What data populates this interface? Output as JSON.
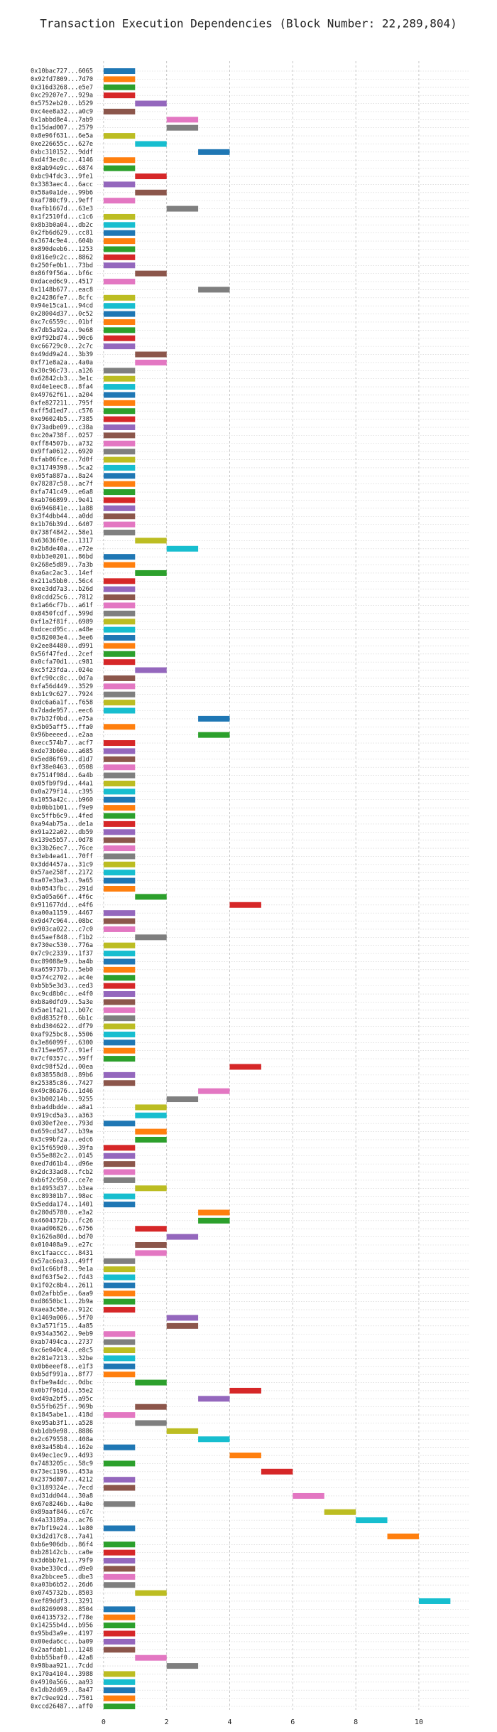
{
  "chart_data": {
    "type": "gantt",
    "title": "Transaction Execution Dependencies (Block Number: 22,289,804)",
    "categories": [
      "0x10bac727...6065",
      "0x92fd7809...7d70",
      "0x316d3268...e5e7",
      "0xc29207e7...929a",
      "0x5752eb20...b529",
      "0xc4ee8a32...a0c9",
      "0x1abbd8e4...7ab9",
      "0x15dad007...2579",
      "0x8e96f631...6e5a",
      "0xe226655c...627e",
      "0xbc310152...9ddf",
      "0xd4f3ec0c...4146",
      "0x8ab94e9c...6874",
      "0xbc94fdc3...9fe1",
      "0x3383aec4...6acc",
      "0x58a0a1de...99b6",
      "0xaf780cf9...9eff",
      "0xafb1667d...63e3",
      "0x1f2510fd...c1c6",
      "0x8b3b0a04...db2c",
      "0x2fb6d629...cc81",
      "0x3674c9e4...604b",
      "0x890deeb6...1253",
      "0x816e9c2c...8862",
      "0x250fe0b1...73bd",
      "0x86f9f56a...bf6c",
      "0xdaced6c9...4517",
      "0x1148b677...eac8",
      "0x24286fe7...8cfc",
      "0x94e15ca1...94cd",
      "0x28004d37...0c52",
      "0xc7c6559c...01bf",
      "0x7db5a92a...9e68",
      "0x9f92bd74...90c6",
      "0xc66729c0...2c7c",
      "0x49dd9a24...3b39",
      "0xf71e8a2a...4a0a",
      "0x30c96c73...a126",
      "0x62842cb3...3e1c",
      "0xd4e1eec8...8fa4",
      "0x49762f61...a204",
      "0xfe827211...795f",
      "0xff5d1ed7...c576",
      "0xe96024b5...7385",
      "0x73adbe09...c38a",
      "0xc20a738f...0257",
      "0xff84507b...a732",
      "0x9ffa0612...6920",
      "0xfab06fce...7d0f",
      "0x31749398...5ca2",
      "0x05fa887a...8a24",
      "0x78287c58...ac7f",
      "0xfa741c49...e6a8",
      "0xab766899...9e41",
      "0x6946841e...1a88",
      "0x3f4dbb44...a0dd",
      "0x1b76b39d...6407",
      "0x738f4842...58e1",
      "0x63636f0e...1317",
      "0x2b8de40a...e72e",
      "0xbb3e0201...86bd",
      "0x268e5d89...7a3b",
      "0xa6ac2ac3...14ef",
      "0x211e5bb0...56c4",
      "0xee3dd7a3...b26d",
      "0x8cdd25c6...7812",
      "0x1a66cf7b...a61f",
      "0x8450fcdf...599d",
      "0xf1a2f81f...6989",
      "0xdcecd95c...a48e",
      "0x582003e4...3ee6",
      "0x2ee84480...d991",
      "0x56f47fed...2cef",
      "0x0cfa70d1...c981",
      "0xc5f23fda...024e",
      "0xfc90cc8c...0d7a",
      "0xfa56d449...3529",
      "0xb1c9c627...7924",
      "0xdc6a6a1f...f658",
      "0x7dade957...eec6",
      "0x7b32f0bd...e75a",
      "0x5b05aff5...ffa0",
      "0x96beeeed...e2aa",
      "0xecc574b7...acf7",
      "0xde73b60e...a685",
      "0x5ed86f69...d1d7",
      "0xf38e0463...0508",
      "0x7514f98d...6a4b",
      "0x05fb9f9d...44a1",
      "0x0a279f14...c395",
      "0x1055a42c...b960",
      "0xb0bb1b01...f9e9",
      "0xc5ffb6c9...4fed",
      "0xa94ab75a...de1a",
      "0x91a22a02...db59",
      "0x139e5b57...0d78",
      "0x33b26ec7...76ce",
      "0x3eb4ea41...70ff",
      "0x3dd4457a...31c9",
      "0x57ae258f...2172",
      "0xa07e3ba3...9a65",
      "0xb0543fbc...291d",
      "0x5a05a66f...4f6c",
      "0x911677dd...e4f6",
      "0xa00a1159...4467",
      "0x9d47c964...08bc",
      "0x903ca022...c7c0",
      "0x45aef848...f1b2",
      "0x730ec530...776a",
      "0x7c9c2339...1f37",
      "0xc89088e9...ba4b",
      "0xa659737b...5eb0",
      "0x574c2702...ac4e",
      "0xb5b5e3d3...ced3",
      "0xc9cd8b0c...e4f0",
      "0xb8a0dfd9...5a3e",
      "0x5ae1fa21...b07c",
      "0x8d8352f0...6b1c",
      "0xbd304622...df79",
      "0xaf925bc8...5506",
      "0x3e86099f...6300",
      "0x715ee057...91ef",
      "0x7cf0357c...59ff",
      "0xdc98f52d...00ea",
      "0x838558d8...89b6",
      "0x25385c86...7427",
      "0x49c86a76...1d46",
      "0x3b00214b...9255",
      "0xba4dbdde...a8a1",
      "0x919cd5a3...a363",
      "0x030ef2ee...793d",
      "0x659cd347...b39a",
      "0x3c99bf2a...edc6",
      "0x15f659d0...39fa",
      "0x55e882c2...0145",
      "0xed7d61b4...d96e",
      "0x2dc33ad8...fcb2",
      "0xb6f2c950...ce7e",
      "0x14953d37...b3ea",
      "0xc89301b7...98ec",
      "0x5edda174...1401",
      "0x280d5780...e3a2",
      "0x4604372b...fc26",
      "0xaad06826...6756",
      "0x1626a80d...bd70",
      "0x010408a9...e27c",
      "0xc1faaccc...8431",
      "0x57ac6ea3...49ff",
      "0xd1c66bf8...9e1a",
      "0xdf63f5e2...fd43",
      "0x1f02c8b4...2611",
      "0x02afbb5e...6aa9",
      "0xd8650bc1...2b9a",
      "0xaea3c58e...912c",
      "0x1469a006...5f70",
      "0x3a571f15...4a85",
      "0x934a3562...9eb9",
      "0xab7494ca...2737",
      "0xc6e040c4...e8c5",
      "0x281e7213...32be",
      "0x0b6eeef8...e1f3",
      "0xb5df991a...8f77",
      "0xfbe9a4dc...0dbc",
      "0x0b7f961d...55e2",
      "0xd49a2bf5...a95c",
      "0x55fb625f...969b",
      "0x1845abe1...418d",
      "0xe95ab3f1...a528",
      "0xb1db9e98...8886",
      "0x2c679558...408a",
      "0x03a458b4...162e",
      "0x49ec1ec9...4d93",
      "0x7483205c...58c9",
      "0x73ec1196...453a",
      "0x2375d807...4212",
      "0x3189324e...7ecd",
      "0xd31dd044...30a8",
      "0x67e8246b...4a0e",
      "0x89aaf846...c67c",
      "0x4a33189a...ac76",
      "0x7bf19e24...1e80",
      "0x3d2d17c8...7a41",
      "0xb6e906db...86f4",
      "0xb28142cb...ca0e",
      "0x3d6bb7e1...79f9",
      "0xabe330cd...d9e0",
      "0xa2bbcee5...dbe3",
      "0xa03b6b52...26d6",
      "0x0745732b...8503",
      "0xef89ddf3...3291",
      "0xd8269098...8504",
      "0x64135732...f78e",
      "0x14255b4d...b956",
      "0x95bd3a9e...4197",
      "0x00eda6cc...ba09",
      "0x2aafdab1...1248",
      "0xbb55baf0...42a8",
      "0x98baa921...7cdd",
      "0x170a4104...3988",
      "0x4910a566...aa93",
      "0x1db2dd69...8a47",
      "0x7c9ee92d...7501",
      "0xccd26487...aff0"
    ],
    "starts": [
      0,
      0,
      0,
      0,
      1,
      0,
      2,
      2,
      0,
      1,
      3,
      0,
      0,
      1,
      0,
      1,
      0,
      2,
      0,
      0,
      0,
      0,
      0,
      0,
      0,
      1,
      0,
      3,
      0,
      0,
      0,
      0,
      0,
      0,
      0,
      1,
      1,
      0,
      0,
      0,
      0,
      0,
      0,
      0,
      0,
      0,
      0,
      0,
      0,
      0,
      0,
      0,
      0,
      0,
      0,
      0,
      0,
      0,
      1,
      2,
      0,
      0,
      1,
      0,
      0,
      0,
      0,
      0,
      0,
      0,
      0,
      0,
      0,
      0,
      1,
      0,
      0,
      0,
      0,
      0,
      3,
      0,
      3,
      0,
      0,
      0,
      0,
      0,
      0,
      0,
      0,
      0,
      0,
      0,
      0,
      0,
      0,
      0,
      0,
      0,
      0,
      0,
      1,
      4,
      0,
      0,
      0,
      1,
      0,
      0,
      0,
      0,
      0,
      0,
      0,
      0,
      0,
      0,
      0,
      0,
      0,
      0,
      0,
      4,
      0,
      0,
      3,
      2,
      1,
      1,
      0,
      1,
      1,
      0,
      0,
      0,
      0,
      0,
      1,
      0,
      0,
      3,
      3,
      1,
      2,
      1,
      1,
      0,
      0,
      0,
      0,
      0,
      0,
      0,
      2,
      2,
      0,
      0,
      0,
      0,
      0,
      0,
      1,
      4,
      3,
      1,
      0,
      1,
      2,
      3,
      0,
      4,
      0,
      5,
      0,
      0,
      6,
      0,
      7,
      8,
      0,
      9,
      0,
      0,
      0,
      0,
      0,
      0,
      1,
      10,
      0,
      0,
      0,
      0,
      0,
      0,
      1,
      2,
      0,
      0,
      0,
      0,
      0
    ],
    "ends": [
      1,
      1,
      1,
      1,
      2,
      1,
      3,
      3,
      1,
      2,
      4,
      1,
      1,
      2,
      1,
      2,
      1,
      3,
      1,
      1,
      1,
      1,
      1,
      1,
      1,
      2,
      1,
      4,
      1,
      1,
      1,
      1,
      1,
      1,
      1,
      2,
      2,
      1,
      1,
      1,
      1,
      1,
      1,
      1,
      1,
      1,
      1,
      1,
      1,
      1,
      1,
      1,
      1,
      1,
      1,
      1,
      1,
      1,
      2,
      3,
      1,
      1,
      2,
      1,
      1,
      1,
      1,
      1,
      1,
      1,
      1,
      1,
      1,
      1,
      2,
      1,
      1,
      1,
      1,
      1,
      4,
      1,
      4,
      1,
      1,
      1,
      1,
      1,
      1,
      1,
      1,
      1,
      1,
      1,
      1,
      1,
      1,
      1,
      1,
      1,
      1,
      1,
      2,
      5,
      1,
      1,
      1,
      2,
      1,
      1,
      1,
      1,
      1,
      1,
      1,
      1,
      1,
      1,
      1,
      1,
      1,
      1,
      1,
      5,
      1,
      1,
      4,
      3,
      2,
      2,
      1,
      2,
      2,
      1,
      1,
      1,
      1,
      1,
      2,
      1,
      1,
      4,
      4,
      2,
      3,
      2,
      2,
      1,
      1,
      1,
      1,
      1,
      1,
      1,
      3,
      3,
      1,
      1,
      1,
      1,
      1,
      1,
      2,
      5,
      4,
      2,
      1,
      2,
      3,
      4,
      1,
      5,
      1,
      6,
      1,
      1,
      7,
      1,
      8,
      9,
      1,
      10,
      1,
      1,
      1,
      1,
      1,
      1,
      2,
      11,
      1,
      1,
      1,
      1,
      1,
      1,
      2,
      3,
      1,
      1,
      1,
      1,
      1
    ],
    "palette": [
      "#1f77b4",
      "#ff7f0e",
      "#2ca02c",
      "#d62728",
      "#9467bd",
      "#8c564b",
      "#e377c2",
      "#7f7f7f",
      "#bcbd22",
      "#17becf"
    ],
    "xlim": [
      -0.2,
      11.6
    ],
    "xticks": [
      0,
      2,
      4,
      6,
      8,
      10
    ],
    "grid": true
  }
}
